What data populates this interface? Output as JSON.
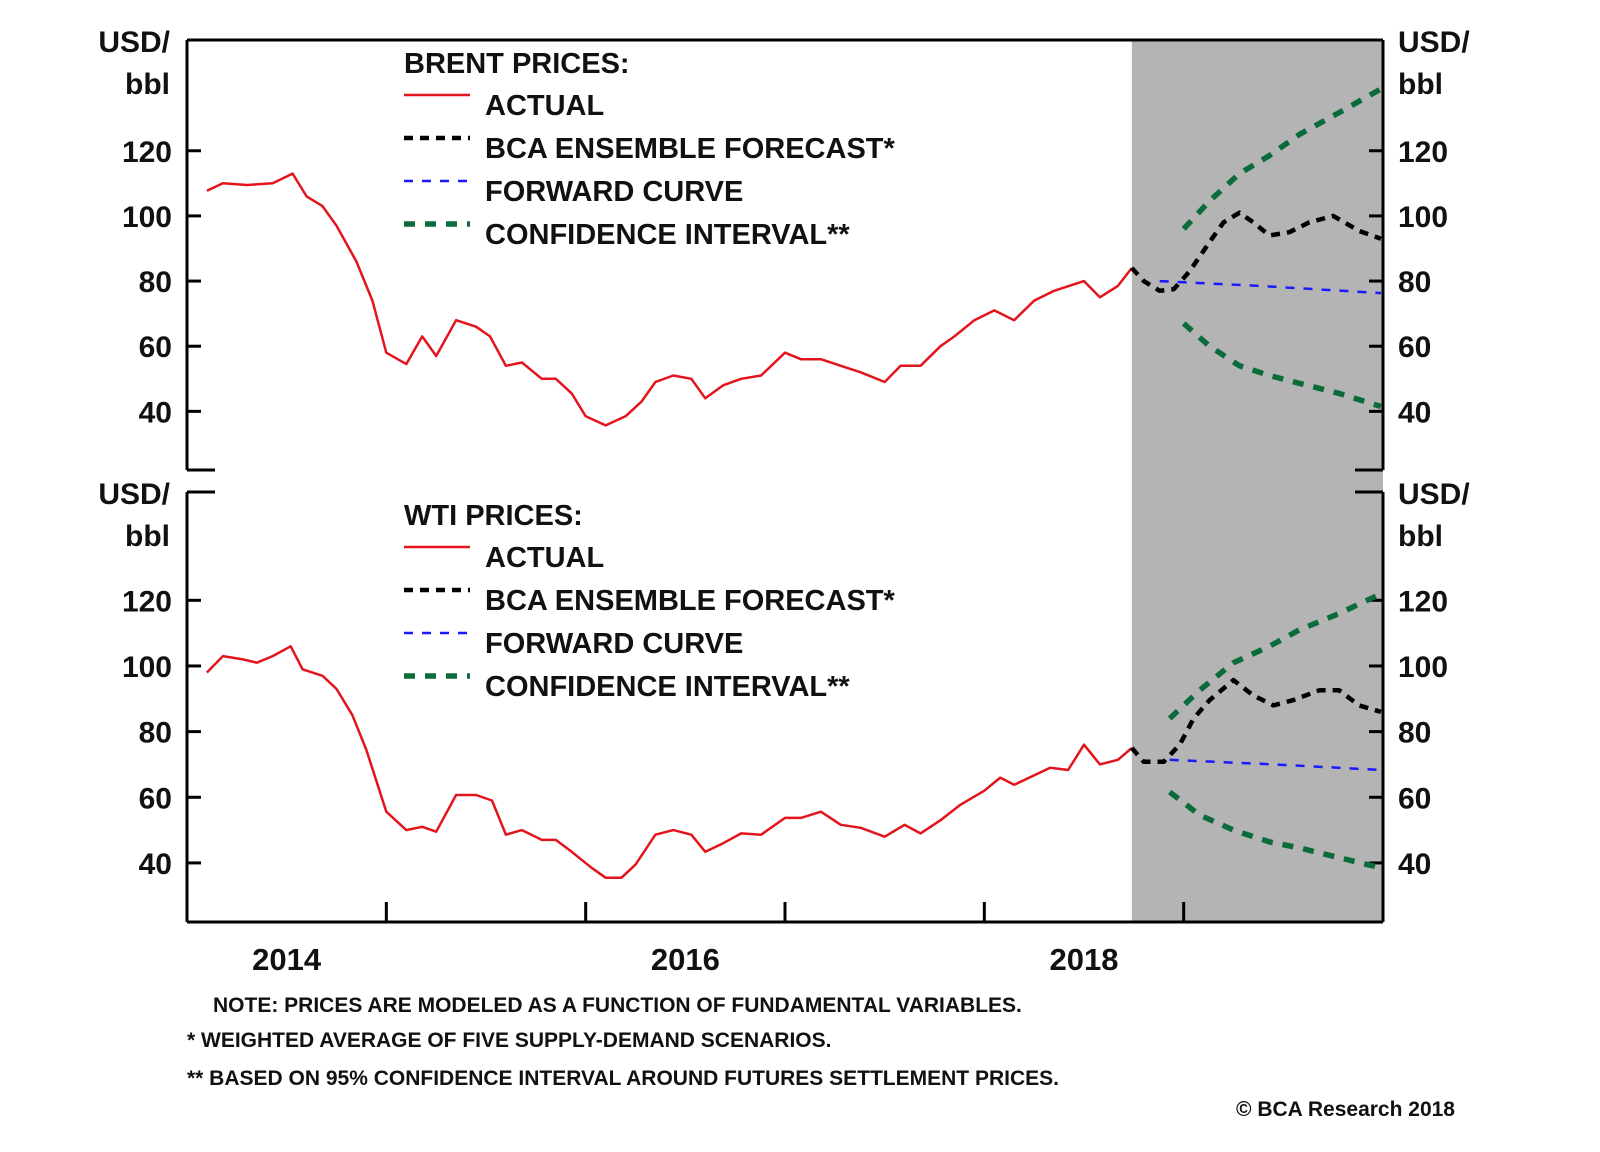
{
  "colors": {
    "actual": "#e3151c",
    "ensemble": "#000000",
    "forward": "#1a1aff",
    "confidence": "#0b6b3a",
    "forecast_shade": "#b4b4b4"
  },
  "chart_data": [
    {
      "type": "line",
      "title": "BRENT PRICES:",
      "ylabel_left": [
        "USD/",
        "bbl"
      ],
      "ylabel_right": [
        "USD/",
        "bbl"
      ],
      "xlim": [
        2014,
        2020
      ],
      "ylim": [
        22,
        154
      ],
      "yticks": [
        40,
        60,
        80,
        100,
        120
      ],
      "shaded_forecast_from": 2018.74,
      "grid": false,
      "legend_placement": "top-left",
      "series": [
        {
          "name": "ACTUAL",
          "key": "actual",
          "style": "solid",
          "points": [
            [
              2014.1,
              107.7
            ],
            [
              2014.18,
              110
            ],
            [
              2014.3,
              109.5
            ],
            [
              2014.43,
              110
            ],
            [
              2014.53,
              113
            ],
            [
              2014.6,
              106
            ],
            [
              2014.68,
              103
            ],
            [
              2014.75,
              97
            ],
            [
              2014.85,
              86
            ],
            [
              2014.93,
              74
            ],
            [
              2015.0,
              58
            ],
            [
              2015.1,
              54.5
            ],
            [
              2015.18,
              63
            ],
            [
              2015.25,
              57
            ],
            [
              2015.35,
              68
            ],
            [
              2015.45,
              66
            ],
            [
              2015.52,
              63
            ],
            [
              2015.6,
              54
            ],
            [
              2015.68,
              55
            ],
            [
              2015.78,
              50
            ],
            [
              2015.85,
              50
            ],
            [
              2015.93,
              45.5
            ],
            [
              2016.0,
              38.5
            ],
            [
              2016.1,
              35.7
            ],
            [
              2016.2,
              38.5
            ],
            [
              2016.28,
              43
            ],
            [
              2016.35,
              49
            ],
            [
              2016.44,
              51
            ],
            [
              2016.53,
              50
            ],
            [
              2016.6,
              44
            ],
            [
              2016.69,
              48
            ],
            [
              2016.78,
              50
            ],
            [
              2016.88,
              51
            ],
            [
              2017.0,
              58
            ],
            [
              2017.08,
              56
            ],
            [
              2017.18,
              56
            ],
            [
              2017.28,
              54
            ],
            [
              2017.38,
              52
            ],
            [
              2017.5,
              49
            ],
            [
              2017.58,
              54
            ],
            [
              2017.68,
              54
            ],
            [
              2017.78,
              60
            ],
            [
              2017.85,
              63
            ],
            [
              2017.95,
              68
            ],
            [
              2018.05,
              71
            ],
            [
              2018.15,
              68
            ],
            [
              2018.25,
              74
            ],
            [
              2018.35,
              77
            ],
            [
              2018.5,
              80
            ],
            [
              2018.58,
              75
            ],
            [
              2018.67,
              78.5
            ],
            [
              2018.74,
              84
            ]
          ]
        },
        {
          "name": "BCA ENSEMBLE FORECAST*",
          "key": "ensemble",
          "style": "dashed",
          "points": [
            [
              2018.74,
              84
            ],
            [
              2018.8,
              80
            ],
            [
              2018.88,
              77
            ],
            [
              2018.95,
              77.5
            ],
            [
              2019.03,
              83
            ],
            [
              2019.13,
              92
            ],
            [
              2019.2,
              98
            ],
            [
              2019.28,
              101
            ],
            [
              2019.35,
              98
            ],
            [
              2019.43,
              94
            ],
            [
              2019.53,
              95
            ],
            [
              2019.63,
              98
            ],
            [
              2019.75,
              100
            ],
            [
              2019.88,
              95.4
            ],
            [
              2019.99,
              93
            ]
          ]
        },
        {
          "name": "FORWARD CURVE",
          "key": "forward",
          "style": "dashed",
          "points": [
            [
              2018.88,
              80
            ],
            [
              2019.38,
              78.5
            ],
            [
              2019.99,
              76.3
            ]
          ]
        },
        {
          "name": "CONFIDENCE INTERVAL**",
          "key": "confidence",
          "style": "dashed",
          "upper": [
            [
              2019.0,
              96
            ],
            [
              2019.13,
              104.6
            ],
            [
              2019.28,
              113
            ],
            [
              2019.43,
              118.5
            ],
            [
              2019.58,
              125
            ],
            [
              2019.78,
              131.7
            ],
            [
              2019.99,
              139
            ]
          ],
          "lower": [
            [
              2019.0,
              67
            ],
            [
              2019.13,
              60
            ],
            [
              2019.28,
              54
            ],
            [
              2019.43,
              51
            ],
            [
              2019.58,
              48.6
            ],
            [
              2019.78,
              45.5
            ],
            [
              2019.99,
              41.5
            ]
          ]
        }
      ]
    },
    {
      "type": "line",
      "title": "WTI PRICES:",
      "ylabel_left": [
        "USD/",
        "bbl"
      ],
      "ylabel_right": [
        "USD/",
        "bbl"
      ],
      "xlim": [
        2014,
        2020
      ],
      "ylim": [
        22,
        153
      ],
      "yticks": [
        40,
        60,
        80,
        100,
        120
      ],
      "xtick_labels": [
        "2014",
        "2016",
        "2018"
      ],
      "shaded_forecast_from": 2018.74,
      "grid": false,
      "legend_placement": "top-left",
      "series": [
        {
          "name": "ACTUAL",
          "key": "actual",
          "style": "solid",
          "points": [
            [
              2014.1,
              98
            ],
            [
              2014.18,
              103
            ],
            [
              2014.28,
              102
            ],
            [
              2014.35,
              101
            ],
            [
              2014.43,
              103
            ],
            [
              2014.52,
              106
            ],
            [
              2014.58,
              99
            ],
            [
              2014.68,
              97
            ],
            [
              2014.75,
              93
            ],
            [
              2014.83,
              85
            ],
            [
              2014.9,
              74.4
            ],
            [
              2015.0,
              55.6
            ],
            [
              2015.1,
              50
            ],
            [
              2015.18,
              51
            ],
            [
              2015.25,
              49.5
            ],
            [
              2015.35,
              60.7
            ],
            [
              2015.45,
              60.7
            ],
            [
              2015.53,
              59
            ],
            [
              2015.6,
              48.6
            ],
            [
              2015.68,
              50
            ],
            [
              2015.78,
              47
            ],
            [
              2015.85,
              47
            ],
            [
              2015.93,
              43.4
            ],
            [
              2016.03,
              38.5
            ],
            [
              2016.1,
              35.5
            ],
            [
              2016.18,
              35.5
            ],
            [
              2016.25,
              39.5
            ],
            [
              2016.35,
              48.6
            ],
            [
              2016.44,
              50
            ],
            [
              2016.53,
              48.6
            ],
            [
              2016.6,
              43.4
            ],
            [
              2016.69,
              46
            ],
            [
              2016.78,
              49
            ],
            [
              2016.88,
              48.6
            ],
            [
              2017.0,
              53.7
            ],
            [
              2017.08,
              53.7
            ],
            [
              2017.18,
              55.6
            ],
            [
              2017.28,
              51.6
            ],
            [
              2017.38,
              50.7
            ],
            [
              2017.5,
              48
            ],
            [
              2017.6,
              51.6
            ],
            [
              2017.68,
              49
            ],
            [
              2017.78,
              53
            ],
            [
              2017.88,
              57.7
            ],
            [
              2018.0,
              62
            ],
            [
              2018.08,
              66
            ],
            [
              2018.15,
              63.8
            ],
            [
              2018.33,
              69
            ],
            [
              2018.42,
              68.3
            ],
            [
              2018.5,
              76
            ],
            [
              2018.58,
              70
            ],
            [
              2018.67,
              71.4
            ],
            [
              2018.74,
              75
            ]
          ]
        },
        {
          "name": "BCA ENSEMBLE FORECAST*",
          "key": "ensemble",
          "style": "dashed",
          "points": [
            [
              2018.74,
              75
            ],
            [
              2018.8,
              70.8
            ],
            [
              2018.9,
              70.8
            ],
            [
              2018.98,
              76
            ],
            [
              2019.05,
              84
            ],
            [
              2019.13,
              89.6
            ],
            [
              2019.25,
              95.7
            ],
            [
              2019.35,
              91
            ],
            [
              2019.45,
              88
            ],
            [
              2019.55,
              89.6
            ],
            [
              2019.68,
              92.6
            ],
            [
              2019.78,
              92.6
            ],
            [
              2019.88,
              88
            ],
            [
              2019.99,
              86
            ]
          ]
        },
        {
          "name": "FORWARD CURVE",
          "key": "forward",
          "style": "dashed",
          "points": [
            [
              2018.93,
              71.4
            ],
            [
              2019.45,
              70
            ],
            [
              2019.99,
              68.3
            ]
          ]
        },
        {
          "name": "CONFIDENCE INTERVAL**",
          "key": "confidence",
          "style": "dashed",
          "upper": [
            [
              2018.93,
              84
            ],
            [
              2019.08,
              92.6
            ],
            [
              2019.25,
              101
            ],
            [
              2019.43,
              106
            ],
            [
              2019.58,
              111
            ],
            [
              2019.78,
              116
            ],
            [
              2019.99,
              122
            ]
          ],
          "lower": [
            [
              2018.93,
              61.6
            ],
            [
              2019.08,
              54.6
            ],
            [
              2019.25,
              50
            ],
            [
              2019.43,
              46.4
            ],
            [
              2019.58,
              44.6
            ],
            [
              2019.78,
              41.6
            ],
            [
              2019.99,
              38.5
            ]
          ]
        }
      ]
    }
  ],
  "xaxis": {
    "tick_labels": [
      "2014",
      "2016",
      "2018"
    ],
    "label_years": [
      2014.5,
      2016.5,
      2018.5
    ],
    "tick_years": [
      2015,
      2016,
      2017,
      2018,
      2019
    ]
  },
  "notes": {
    "note": "NOTE: PRICES ARE MODELED AS A FUNCTION OF FUNDAMENTAL VARIABLES.",
    "star": "*  WEIGHTED AVERAGE OF FIVE SUPPLY-DEMAND SCENARIOS.",
    "dstar": "** BASED ON 95% CONFIDENCE INTERVAL AROUND FUTURES SETTLEMENT PRICES.",
    "copyright": "© BCA Research 2018"
  }
}
